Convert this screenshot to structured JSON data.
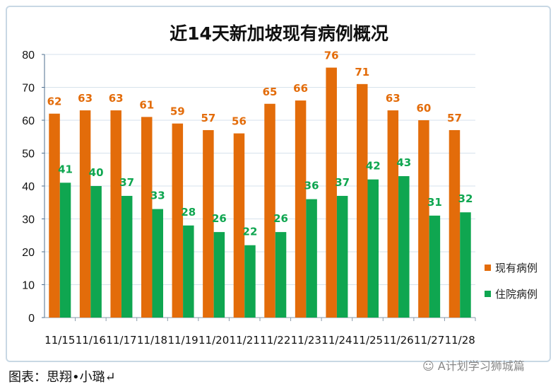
{
  "chart_data": {
    "type": "bar",
    "title": "近14天新加坡现有病例概况",
    "categories": [
      "11/15",
      "11/16",
      "11/17",
      "11/18",
      "11/19",
      "11/20",
      "11/21",
      "11/22",
      "11/23",
      "11/24",
      "11/25",
      "11/26",
      "11/27",
      "11/28"
    ],
    "series": [
      {
        "name": "现有病例",
        "color": "#e36c0a",
        "values": [
          62,
          63,
          63,
          61,
          59,
          57,
          56,
          65,
          66,
          76,
          71,
          63,
          60,
          57
        ]
      },
      {
        "name": "住院病例",
        "color": "#0fa650",
        "values": [
          41,
          40,
          37,
          33,
          28,
          26,
          22,
          26,
          36,
          37,
          42,
          43,
          31,
          32
        ]
      }
    ],
    "ylim": [
      0,
      80
    ],
    "yticks": [
      0,
      10,
      20,
      30,
      40,
      50,
      60,
      70,
      80
    ],
    "grid": true,
    "legend_position": "right",
    "data_labels": true
  },
  "footer": {
    "caption": "图表：思翔•小璐↵",
    "watermark": "A计划学习狮城篇"
  }
}
